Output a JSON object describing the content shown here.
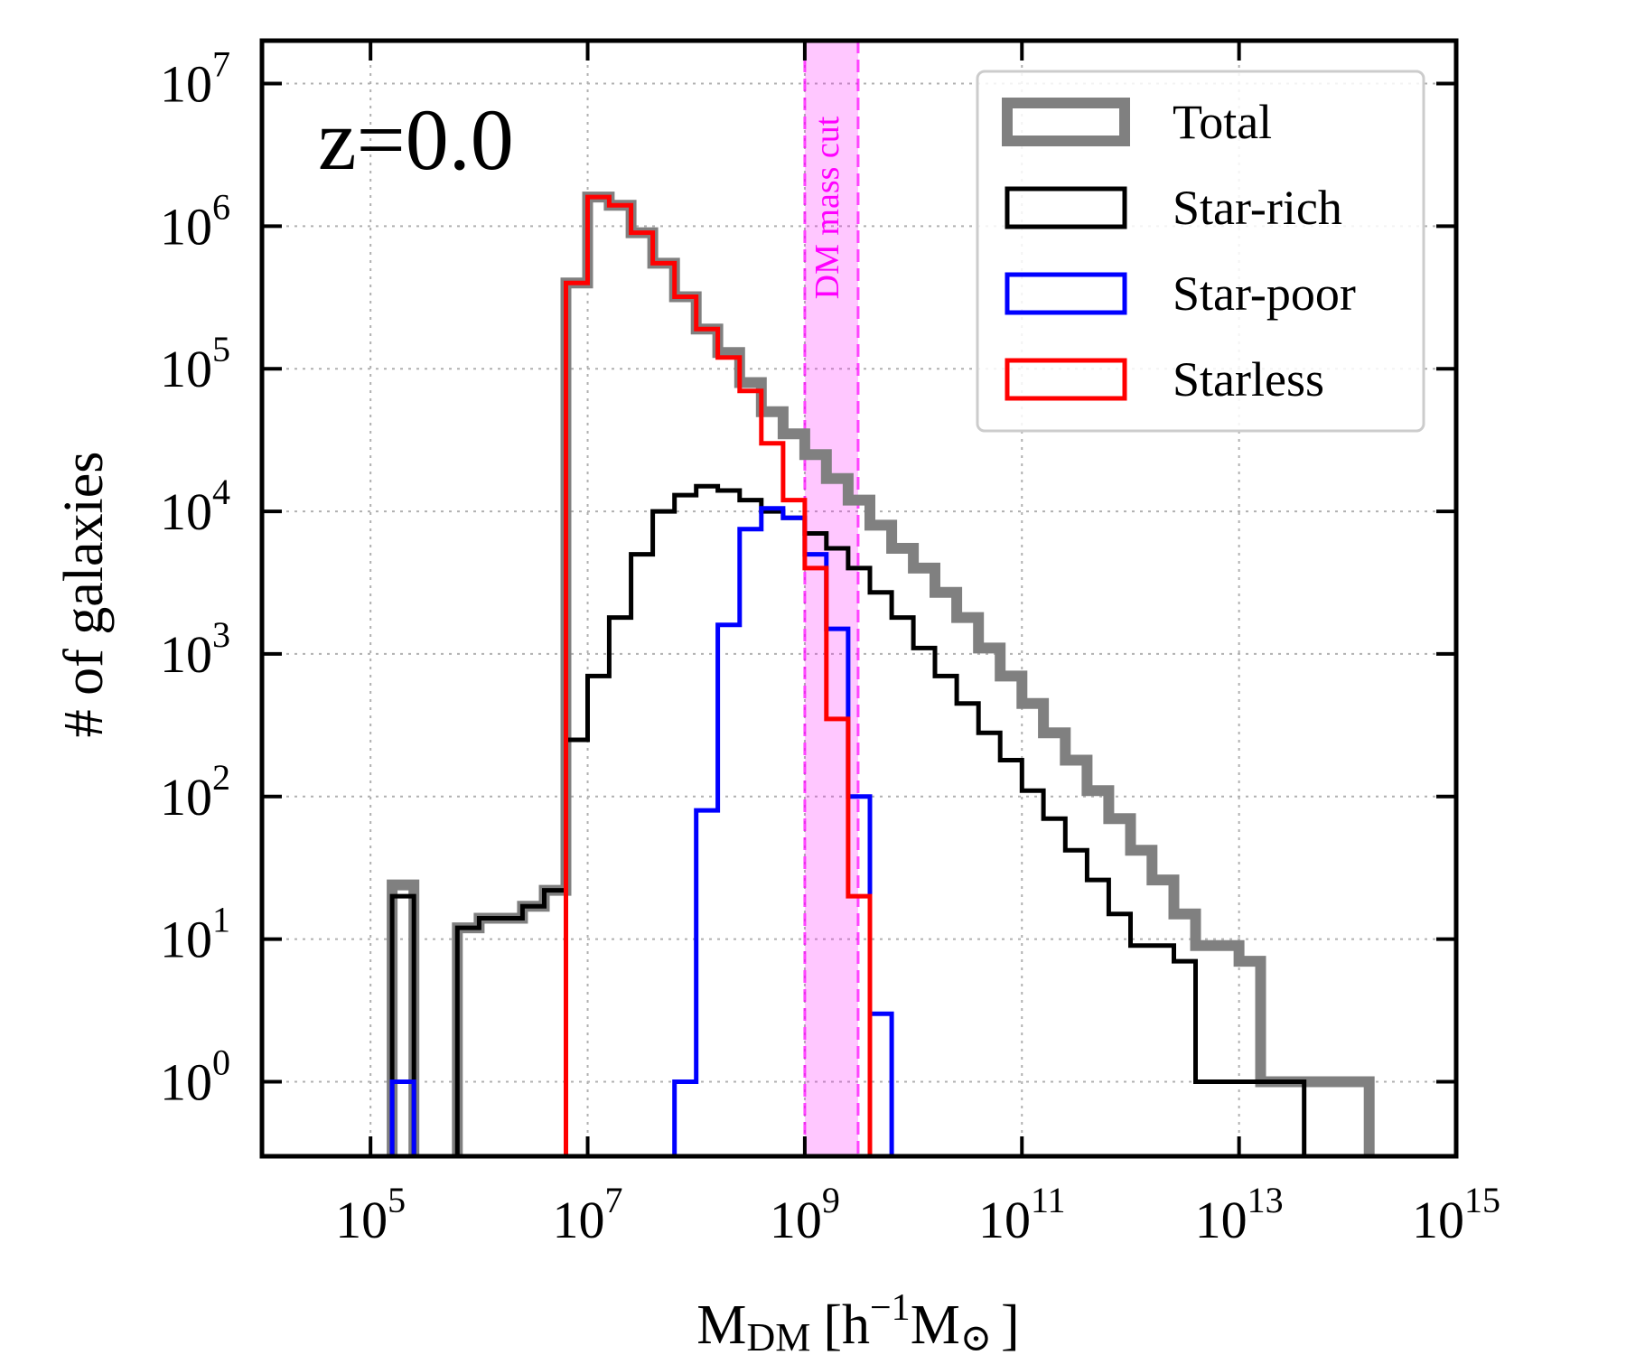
{
  "chart_data": {
    "type": "histogram-step",
    "annotation": "z=0.0",
    "xlabel": {
      "main": "M",
      "sub": "DM",
      "bracket_open": "[h",
      "exp": "−1",
      "unit": "M",
      "sun_symbol": "⊙",
      "bracket_close": "]"
    },
    "ylabel": "# of galaxies",
    "x_scale": "log",
    "y_scale": "log",
    "xlim": [
      10000,
      1000000000000000.0
    ],
    "ylim": [
      0.3,
      20000000.0
    ],
    "x_ticks": [
      {
        "value": 100000.0,
        "base": "10",
        "exp": "5"
      },
      {
        "value": 10000000.0,
        "base": "10",
        "exp": "7"
      },
      {
        "value": 1000000000.0,
        "base": "10",
        "exp": "9"
      },
      {
        "value": 100000000000.0,
        "base": "10",
        "exp": "11"
      },
      {
        "value": 10000000000000.0,
        "base": "10",
        "exp": "13"
      },
      {
        "value": 1000000000000000.0,
        "base": "10",
        "exp": "15"
      }
    ],
    "y_ticks": [
      {
        "value": 1,
        "base": "10",
        "exp": "0"
      },
      {
        "value": 10,
        "base": "10",
        "exp": "1"
      },
      {
        "value": 100,
        "base": "10",
        "exp": "2"
      },
      {
        "value": 1000,
        "base": "10",
        "exp": "3"
      },
      {
        "value": 10000,
        "base": "10",
        "exp": "4"
      },
      {
        "value": 100000,
        "base": "10",
        "exp": "5"
      },
      {
        "value": 1000000,
        "base": "10",
        "exp": "6"
      },
      {
        "value": 10000000,
        "base": "10",
        "exp": "7"
      }
    ],
    "grid": true,
    "legend_position": "top-right",
    "mass_cut_band": {
      "label": "DM mass cut",
      "x_range": [
        1000000000.0,
        3100000000.0
      ],
      "color": "#ff00ff"
    },
    "bin_edges": [
      158000.0,
      251000.0,
      398000.0,
      631000.0,
      1000000.0,
      1580000.0,
      2510000.0,
      3980000.0,
      6310000.0,
      10000000.0,
      15800000.0,
      25100000.0,
      39800000.0,
      63100000.0,
      100000000.0,
      158000000.0,
      251000000.0,
      398000000.0,
      631000000.0,
      1000000000.0,
      1580000000.0,
      2510000000.0,
      3980000000.0,
      6310000000.0,
      10000000000.0,
      15800000000.0,
      25100000000.0,
      39800000000.0,
      63100000000.0,
      100000000000.0,
      158000000000.0,
      251000000000.0,
      398000000000.0,
      631000000000.0,
      1000000000000.0,
      1580000000000.0,
      2510000000000.0,
      3980000000000.0,
      6310000000000.0,
      10000000000000.0,
      15800000000000.0,
      25100000000000.0,
      39800000000000.0,
      63100000000000.0,
      100000000000000.0,
      158000000000000.0
    ],
    "series": [
      {
        "name": "Total",
        "color": "#808080",
        "width": 12,
        "values": [
          24,
          0,
          0,
          12,
          14,
          14,
          17,
          22,
          400000.0,
          1600000.0,
          1400000.0,
          900000.0,
          550000.0,
          320000.0,
          190000.0,
          130000.0,
          80000.0,
          50000.0,
          35000.0,
          25000.0,
          17000.0,
          12000.0,
          8000.0,
          5500.0,
          4000.0,
          2700.0,
          1800.0,
          1100.0,
          700,
          450,
          280,
          180,
          110,
          70,
          42,
          26,
          15,
          9,
          9,
          7,
          1,
          1,
          1,
          1,
          1
        ]
      },
      {
        "name": "Star-rich",
        "color": "#000000",
        "width": 5,
        "values": [
          20,
          0,
          0,
          12,
          14,
          14,
          17,
          22,
          250,
          700,
          1800,
          5000,
          10000.0,
          13000.0,
          15000.0,
          14000.0,
          12000.0,
          10000.0,
          9000.0,
          7000.0,
          5500.0,
          4000.0,
          2700.0,
          1800.0,
          1100.0,
          700,
          450,
          280,
          180,
          110,
          70,
          42,
          26,
          15,
          9,
          9,
          7,
          1,
          1,
          1,
          1,
          1,
          0,
          0,
          0
        ]
      },
      {
        "name": "Star-poor",
        "color": "#0000ff",
        "width": 5,
        "values": [
          1,
          0,
          0,
          0,
          0,
          0,
          0,
          0,
          0,
          0,
          0,
          0,
          0,
          1,
          80,
          1600,
          7500,
          10500.0,
          9000.0,
          5000.0,
          1500.0,
          100,
          3,
          0,
          0,
          0,
          0,
          0,
          0,
          0,
          0,
          0,
          0,
          0,
          0,
          0,
          0,
          0,
          0,
          0,
          0,
          0,
          0,
          0,
          0
        ]
      },
      {
        "name": "Starless",
        "color": "#ff0000",
        "width": 5,
        "values": [
          0,
          0,
          0,
          0,
          0,
          0,
          0,
          0,
          400000.0,
          1600000.0,
          1400000.0,
          900000.0,
          550000.0,
          320000.0,
          190000.0,
          120000.0,
          70000.0,
          30000.0,
          12000.0,
          4000.0,
          350,
          20,
          0,
          0,
          0,
          0,
          0,
          0,
          0,
          0,
          0,
          0,
          0,
          0,
          0,
          0,
          0,
          0,
          0,
          0,
          0,
          0,
          0,
          0,
          0
        ]
      }
    ]
  }
}
